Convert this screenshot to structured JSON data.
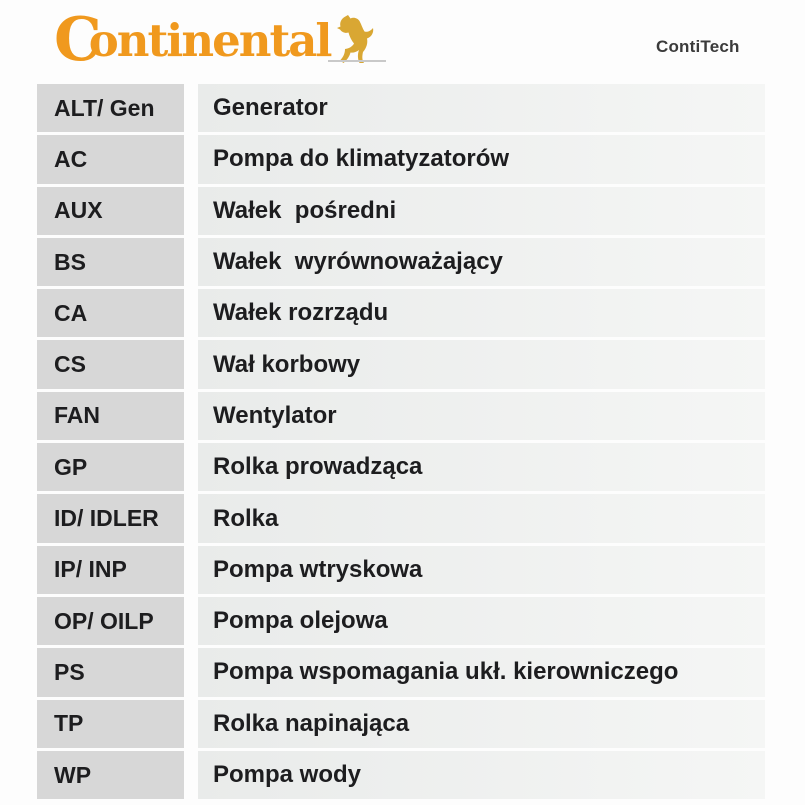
{
  "header": {
    "brand_c": "C",
    "brand_rest": "ontinental",
    "contitech": "ContiTech",
    "logo_color": "#f0991e",
    "horse_color": "#d9a733",
    "contitech_color": "#3b3b3b"
  },
  "table": {
    "rows": [
      {
        "abbr": "ALT/ Gen",
        "desc": "Generator"
      },
      {
        "abbr": "AC",
        "desc": "Pompa do klimatyzatorów"
      },
      {
        "abbr": "AUX",
        "desc": "Wałek  pośredni"
      },
      {
        "abbr": "BS",
        "desc": "Wałek  wyrównoważający"
      },
      {
        "abbr": "CA",
        "desc": "Wałek rozrządu"
      },
      {
        "abbr": "CS",
        "desc": "Wał korbowy"
      },
      {
        "abbr": "FAN",
        "desc": "Wentylator"
      },
      {
        "abbr": "GP",
        "desc": "Rolka prowadząca"
      },
      {
        "abbr": "ID/ IDLER",
        "desc": "Rolka"
      },
      {
        "abbr": "IP/ INP",
        "desc": "Pompa wtryskowa"
      },
      {
        "abbr": "OP/ OILP",
        "desc": "Pompa olejowa"
      },
      {
        "abbr": "PS",
        "desc": "Pompa wspomagania ukł. kierowniczego"
      },
      {
        "abbr": "TP",
        "desc": "Rolka napinająca"
      },
      {
        "abbr": "WP",
        "desc": "Pompa wody"
      }
    ]
  },
  "colors": {
    "page_background": "#fdfdfd",
    "abbr_cell_background": "#d7d7d7",
    "desc_cell_background": "#edefee",
    "text": "#1d1d1f"
  }
}
